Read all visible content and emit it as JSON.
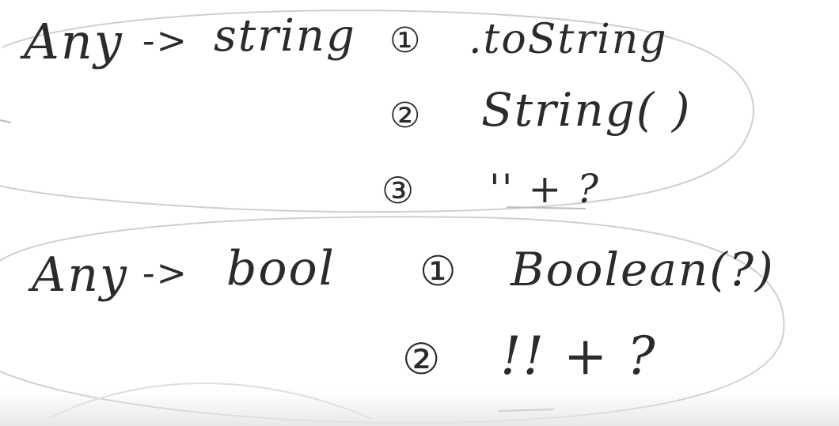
{
  "whiteboard": {
    "rows": [
      {
        "source": "Any",
        "arrow": "->",
        "target": "string",
        "options": [
          {
            "marker": "①",
            "expression": ".toString"
          },
          {
            "marker": "②",
            "expression": "String( )"
          },
          {
            "marker": "③",
            "expression": "'' + ?"
          }
        ]
      },
      {
        "source": "Any",
        "arrow": "->",
        "target": "bool",
        "options": [
          {
            "marker": "①",
            "expression": "Boolean(?)"
          },
          {
            "marker": "②",
            "expression": "!! + ?"
          }
        ]
      }
    ]
  },
  "colors": {
    "ink": "#2b2b2b",
    "loop_stroke": "#cfcfcf",
    "background": "#ffffff"
  }
}
